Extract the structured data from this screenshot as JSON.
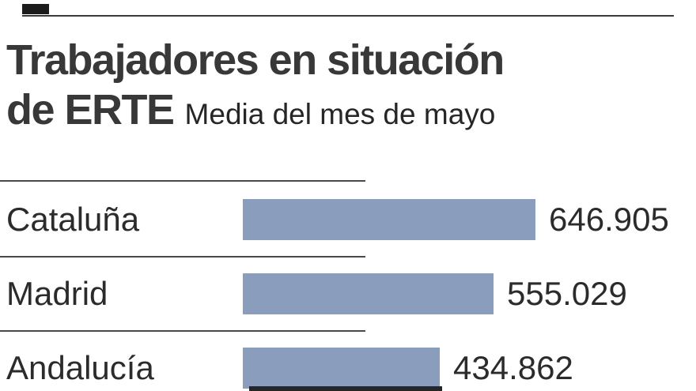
{
  "header": {
    "title_line1": "Trabajadores en situación",
    "title_line2": "de ERTE",
    "subtitle": "Media del mes de mayo"
  },
  "colors": {
    "bar": "#8b9dbc",
    "title_text": "#383838",
    "body_text": "#2b2b2b",
    "rule": "#4a4a4a"
  },
  "chart_data": {
    "type": "bar",
    "orientation": "horizontal",
    "title": "Trabajadores en situación de ERTE",
    "subtitle": "Media del mes de mayo",
    "categories": [
      "Cataluña",
      "Madrid",
      "Andalucía"
    ],
    "values": [
      646905,
      555029,
      434862
    ],
    "value_labels": [
      "646.905",
      "555.029",
      "434.862"
    ],
    "xlim": [
      0,
      646905
    ],
    "grid": false,
    "legend": "none"
  }
}
